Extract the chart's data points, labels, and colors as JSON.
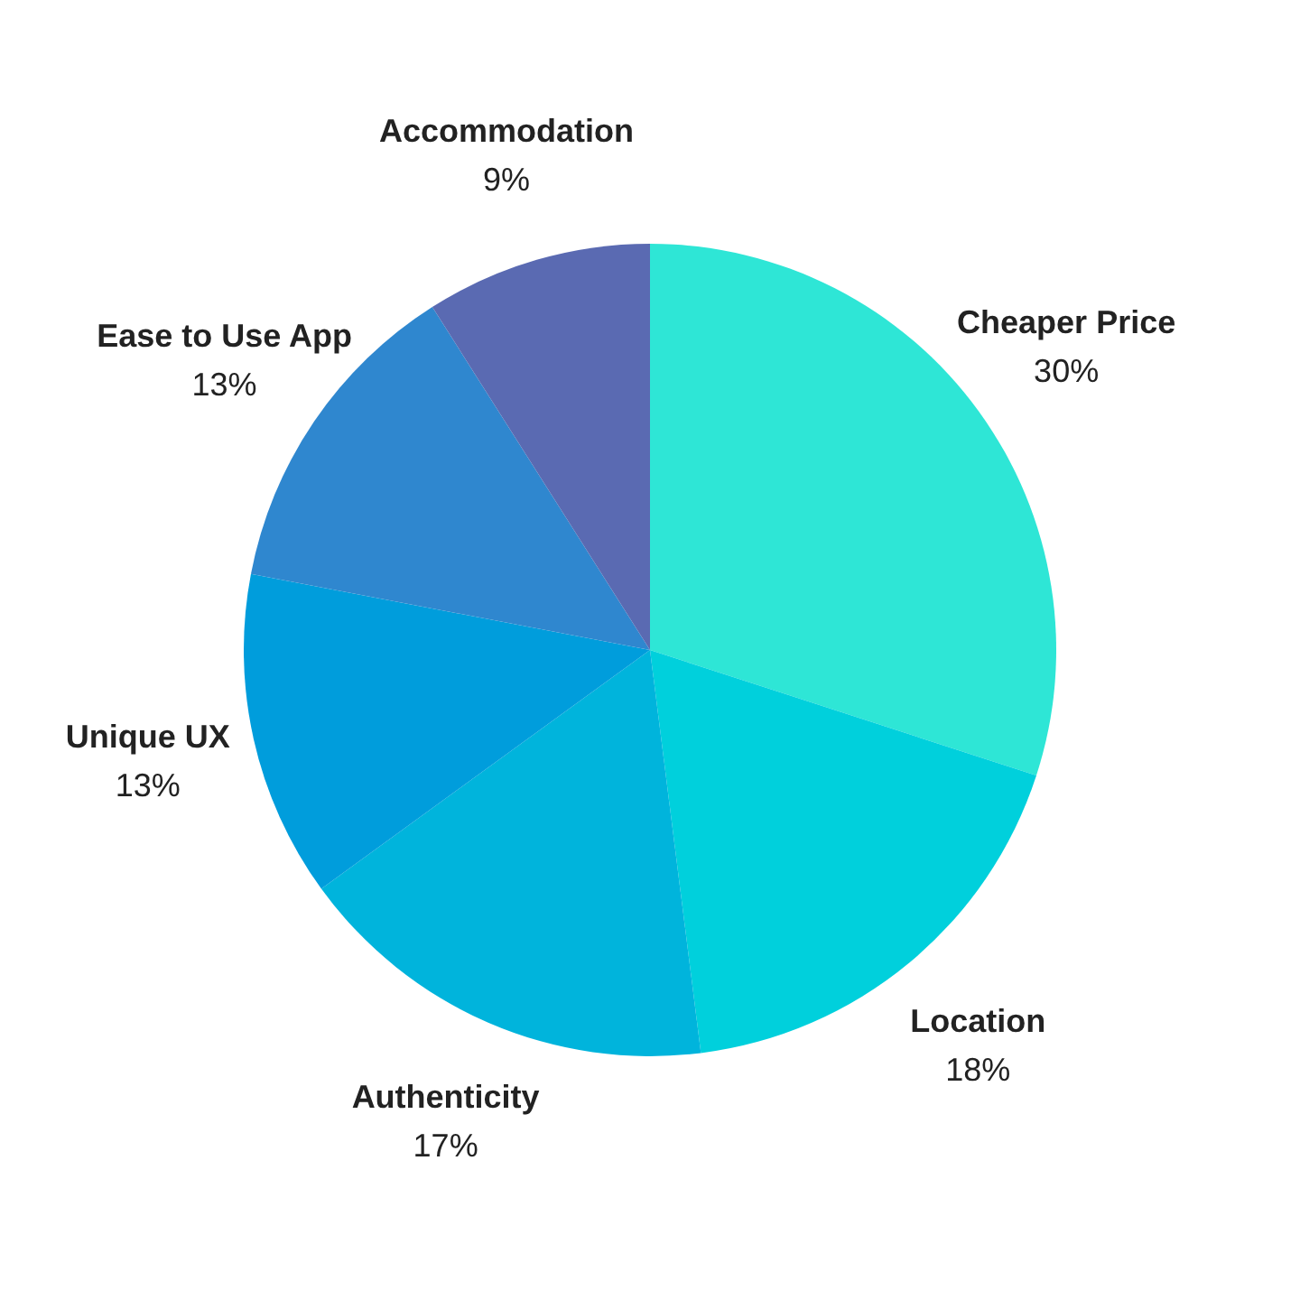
{
  "chart_data": {
    "type": "pie",
    "categories": [
      "Cheaper Price",
      "Location",
      "Authenticity",
      "Unique UX",
      "Ease to Use App",
      "Accommodation"
    ],
    "values": [
      30,
      18,
      17,
      13,
      13,
      9
    ],
    "value_labels": [
      "30%",
      "18%",
      "17%",
      "13%",
      "13%",
      "9%"
    ],
    "colors": [
      "#2ee6d6",
      "#00d0dc",
      "#00b4dc",
      "#009ddc",
      "#2f87cf",
      "#5a6ab2"
    ]
  }
}
